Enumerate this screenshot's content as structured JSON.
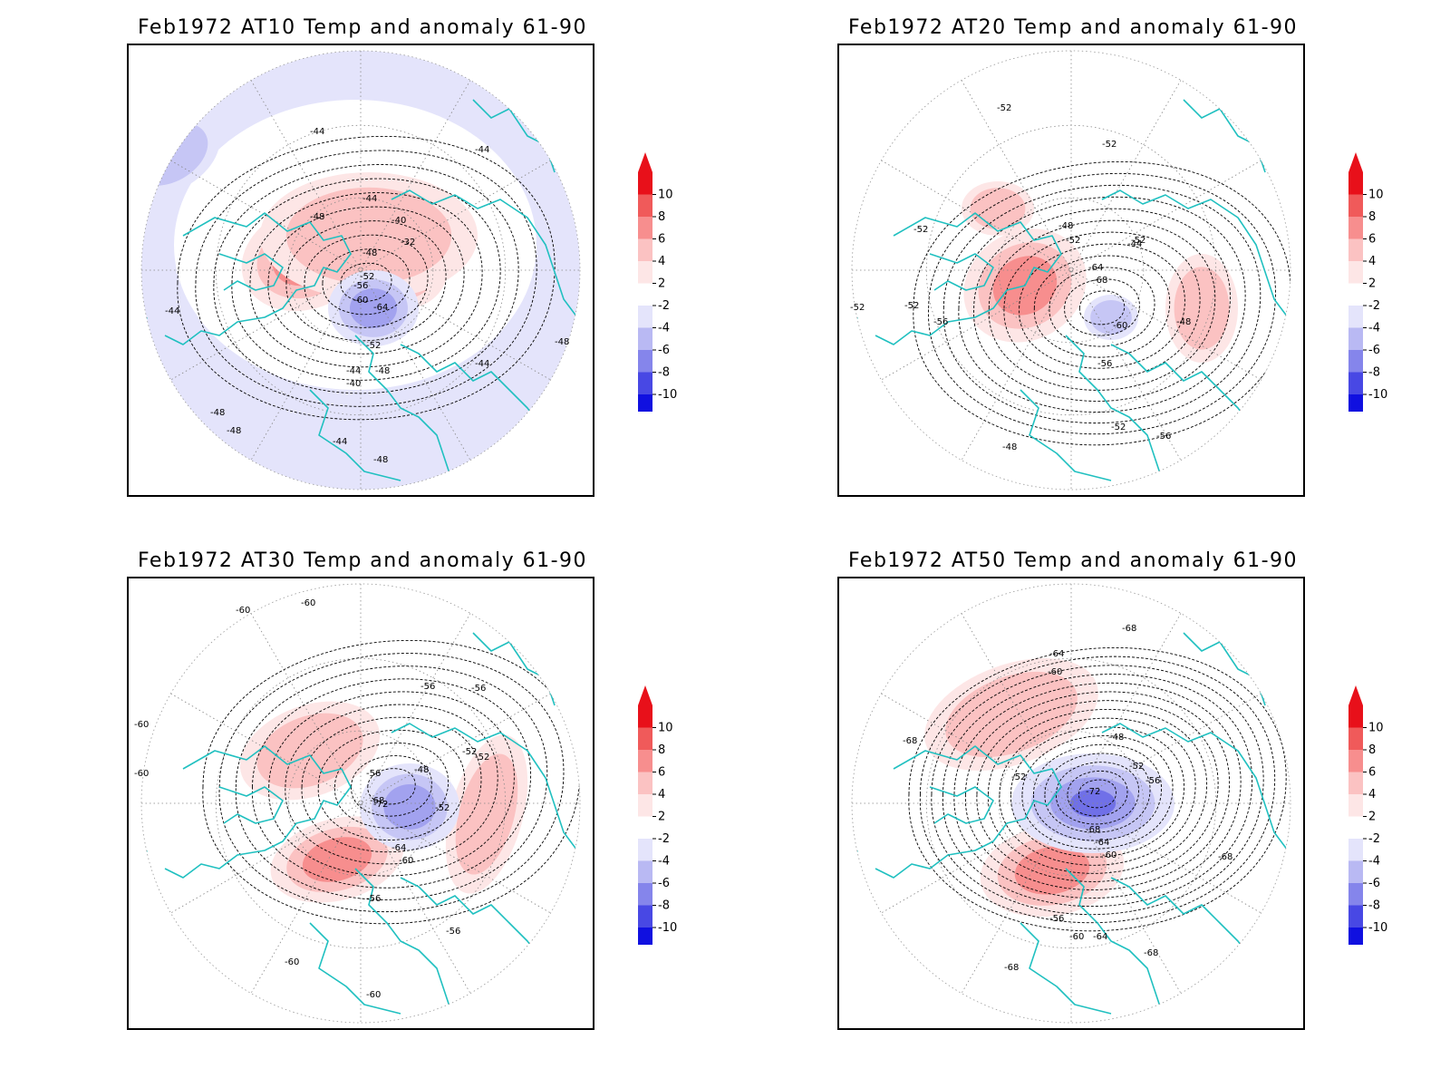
{
  "panels": [
    {
      "title": "Feb1972 AT10 Temp and anomaly 61-90",
      "contour_labels": [
        "-44",
        "-44",
        "-48",
        "-44",
        "-40",
        "-32",
        "-48",
        "-52",
        "-56",
        "-60",
        "-64",
        "-52",
        "-44",
        "-48",
        "-40",
        "-44",
        "-48",
        "-44",
        "-48",
        "-48",
        "-44",
        "-48"
      ],
      "anomaly_blobs": [
        {
          "sign": "warm",
          "intensity": 3
        },
        {
          "sign": "warm",
          "intensity": 3
        },
        {
          "sign": "warm",
          "intensity": 1
        },
        {
          "sign": "cold",
          "intensity": 2
        },
        {
          "sign": "cold",
          "intensity": 1
        }
      ]
    },
    {
      "title": "Feb1972 AT20 Temp and anomaly 61-90",
      "contour_labels": [
        "-52",
        "-52",
        "-52",
        "-48",
        "-52",
        "-44",
        "-64",
        "-68",
        "-60",
        "-56",
        "-52",
        "-48",
        "-56",
        "-52",
        "-52",
        "-56",
        "-52",
        "-48"
      ],
      "anomaly_blobs": [
        {
          "sign": "warm",
          "intensity": 2
        },
        {
          "sign": "warm",
          "intensity": 1
        },
        {
          "sign": "warm",
          "intensity": 1
        },
        {
          "sign": "cold",
          "intensity": 1
        }
      ]
    },
    {
      "title": "Feb1972 AT30 Temp and anomaly 61-90",
      "contour_labels": [
        "-60",
        "-60",
        "-56",
        "-56",
        "-52",
        "-52",
        "-48",
        "-52",
        "-56",
        "-68",
        "-72",
        "-64",
        "-60",
        "-56",
        "-56",
        "-60",
        "-60",
        "-60",
        "-60"
      ],
      "anomaly_blobs": [
        {
          "sign": "warm",
          "intensity": 1
        },
        {
          "sign": "warm",
          "intensity": 2
        },
        {
          "sign": "warm",
          "intensity": 1
        },
        {
          "sign": "cold",
          "intensity": 2
        }
      ]
    },
    {
      "title": "Feb1972 AT50 Temp and anomaly 61-90",
      "contour_labels": [
        "-68",
        "-64",
        "-60",
        "-48",
        "-52",
        "-56",
        "-52",
        "-72",
        "-68",
        "-64",
        "-60",
        "-56",
        "-60",
        "-64",
        "-68",
        "-68",
        "-68",
        "-68"
      ],
      "anomaly_blobs": [
        {
          "sign": "warm",
          "intensity": 1
        },
        {
          "sign": "warm",
          "intensity": 2
        },
        {
          "sign": "cold",
          "intensity": 3
        }
      ]
    }
  ],
  "colorbar": {
    "labels": [
      "10",
      "8",
      "6",
      "4",
      "2",
      "-2",
      "-4",
      "-6",
      "-8",
      "-10"
    ],
    "colors": [
      "#e8101a",
      "#f05a5a",
      "#f78e8e",
      "#fbc2c2",
      "#fde6e6",
      "#ffffff",
      "#e4e4fb",
      "#b9b9f3",
      "#8585eb",
      "#4848e4",
      "#1010e0"
    ]
  },
  "map_colors": {
    "coast": "#20c0c0",
    "contour": "#000000",
    "grid": "#888888"
  }
}
